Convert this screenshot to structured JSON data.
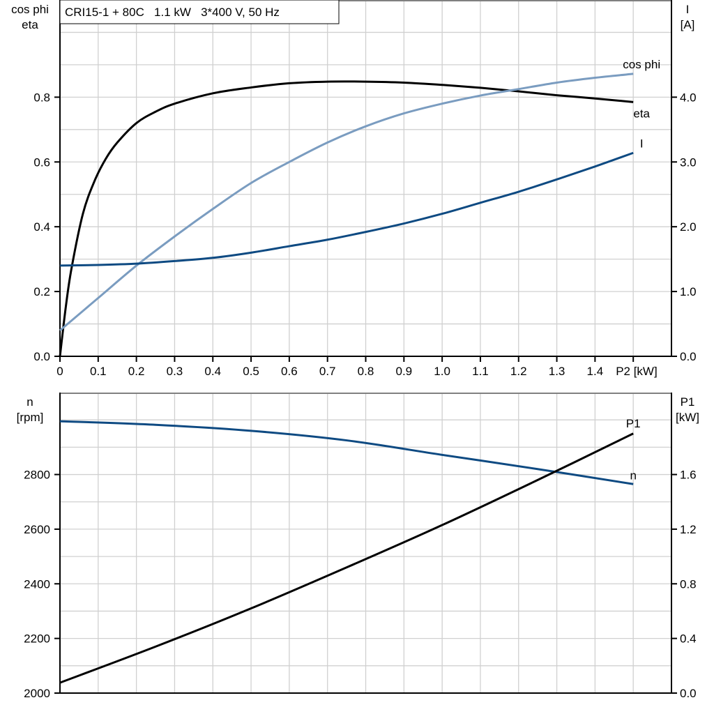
{
  "chart_data": [
    {
      "type": "line",
      "title": "CRI15-1 + 80C   1.1 kW   3*400 V, 50 Hz",
      "xlabel": "P2 [kW]",
      "x_tick_labels": [
        "0",
        "0.1",
        "0.2",
        "0.3",
        "0.4",
        "0.5",
        "0.6",
        "0.7",
        "0.8",
        "0.9",
        "1.0",
        "1.1",
        "1.2",
        "1.3",
        "1.4",
        "P2 [kW]"
      ],
      "xlim": [
        0,
        1.6
      ],
      "ylabel_left": [
        "cos phi",
        "eta"
      ],
      "ylim_left": [
        0,
        1.1
      ],
      "y_ticks_left": [
        "0.0",
        "0.2",
        "0.4",
        "0.6",
        "0.8"
      ],
      "ylabel_right": [
        "I",
        "[A]"
      ],
      "ylim_right": [
        0,
        5.5
      ],
      "y_ticks_right": [
        "0.0",
        "1.0",
        "2.0",
        "3.0",
        "4.0"
      ],
      "grid": true,
      "series": [
        {
          "name": "eta",
          "axis": "left",
          "color": "#000000",
          "x": [
            0,
            0.015,
            0.03,
            0.06,
            0.09,
            0.12,
            0.15,
            0.2,
            0.25,
            0.3,
            0.4,
            0.5,
            0.6,
            0.7,
            0.8,
            0.9,
            1.0,
            1.1,
            1.2,
            1.3,
            1.4,
            1.5
          ],
          "y": [
            0,
            0.15,
            0.27,
            0.44,
            0.54,
            0.61,
            0.66,
            0.72,
            0.755,
            0.78,
            0.812,
            0.83,
            0.843,
            0.848,
            0.848,
            0.845,
            0.838,
            0.829,
            0.818,
            0.806,
            0.796,
            0.785
          ]
        },
        {
          "name": "cos phi",
          "axis": "left",
          "color": "#7a9cc0",
          "x": [
            0,
            0.1,
            0.2,
            0.3,
            0.4,
            0.5,
            0.6,
            0.7,
            0.8,
            0.9,
            1.0,
            1.1,
            1.2,
            1.3,
            1.4,
            1.5
          ],
          "y": [
            0.08,
            0.18,
            0.28,
            0.37,
            0.455,
            0.535,
            0.6,
            0.66,
            0.71,
            0.75,
            0.78,
            0.805,
            0.825,
            0.845,
            0.86,
            0.872
          ]
        },
        {
          "name": "I",
          "axis": "right",
          "color": "#0e4a82",
          "x": [
            0,
            0.1,
            0.2,
            0.3,
            0.4,
            0.5,
            0.6,
            0.7,
            0.8,
            0.9,
            1.0,
            1.1,
            1.2,
            1.3,
            1.4,
            1.5
          ],
          "y": [
            1.4,
            1.41,
            1.43,
            1.47,
            1.52,
            1.6,
            1.7,
            1.8,
            1.92,
            2.05,
            2.2,
            2.37,
            2.54,
            2.73,
            2.93,
            3.14
          ]
        }
      ]
    },
    {
      "type": "line",
      "xlim": [
        0,
        1.6
      ],
      "ylabel_left": [
        "n",
        "[rpm]"
      ],
      "ylim_left": [
        2000,
        3100
      ],
      "y_ticks_left": [
        "2000",
        "2200",
        "2400",
        "2600",
        "2800"
      ],
      "ylabel_right": [
        "P1",
        "[kW]"
      ],
      "ylim_right": [
        0,
        2.2
      ],
      "y_ticks_right": [
        "0.0",
        "0.4",
        "0.8",
        "1.2",
        "1.6"
      ],
      "grid": true,
      "series": [
        {
          "name": "n",
          "axis": "left",
          "color": "#0e4a82",
          "x": [
            0,
            0.25,
            0.5,
            0.75,
            1.0,
            1.25,
            1.5
          ],
          "y": [
            2995,
            2982,
            2960,
            2925,
            2872,
            2820,
            2765
          ]
        },
        {
          "name": "P1",
          "axis": "right",
          "color": "#000000",
          "x": [
            0,
            0.25,
            0.5,
            0.75,
            1.0,
            1.25,
            1.5
          ],
          "y": [
            0.076,
            0.34,
            0.62,
            0.92,
            1.23,
            1.56,
            1.9
          ]
        }
      ]
    }
  ]
}
